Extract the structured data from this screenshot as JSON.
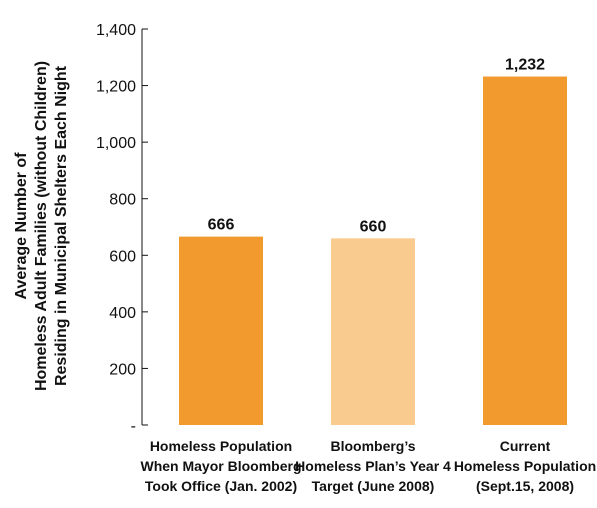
{
  "chart_data": {
    "type": "bar",
    "ylabel": [
      "Average Number of",
      "Homeless Adult Families (without Children)",
      "Residing in Municipal Shelters Each Night"
    ],
    "ylim": [
      0,
      1400
    ],
    "yticks": [
      {
        "value": 0,
        "label": "-"
      },
      {
        "value": 200,
        "label": "200"
      },
      {
        "value": 400,
        "label": "400"
      },
      {
        "value": 600,
        "label": "600"
      },
      {
        "value": 800,
        "label": "800"
      },
      {
        "value": 1000,
        "label": "1,000"
      },
      {
        "value": 1200,
        "label": "1,200"
      },
      {
        "value": 1400,
        "label": "1,400"
      }
    ],
    "categories": [
      [
        "Homeless Population",
        "When Mayor Bloomberg",
        "Took Office (Jan. 2002)"
      ],
      [
        "Bloomberg’s",
        "Homeless Plan’s Year 4",
        "Target (June 2008)"
      ],
      [
        "Current",
        "Homeless Population",
        "(Sept.15, 2008)"
      ]
    ],
    "values": [
      666,
      660,
      1232
    ],
    "value_labels": [
      "666",
      "660",
      "1,232"
    ],
    "colors": [
      "#f39a2e",
      "#facb8e",
      "#f39a2e"
    ],
    "grid": false
  }
}
